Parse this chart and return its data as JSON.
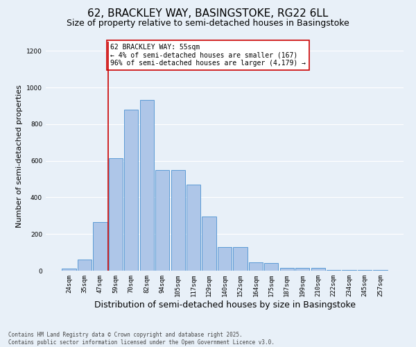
{
  "title": "62, BRACKLEY WAY, BASINGSTOKE, RG22 6LL",
  "subtitle": "Size of property relative to semi-detached houses in Basingstoke",
  "xlabel": "Distribution of semi-detached houses by size in Basingstoke",
  "ylabel": "Number of semi-detached properties",
  "categories": [
    "24sqm",
    "35sqm",
    "47sqm",
    "59sqm",
    "70sqm",
    "82sqm",
    "94sqm",
    "105sqm",
    "117sqm",
    "129sqm",
    "140sqm",
    "152sqm",
    "164sqm",
    "175sqm",
    "187sqm",
    "199sqm",
    "210sqm",
    "222sqm",
    "234sqm",
    "245sqm",
    "257sqm"
  ],
  "values": [
    10,
    60,
    265,
    615,
    880,
    930,
    550,
    550,
    470,
    295,
    130,
    130,
    45,
    40,
    15,
    15,
    15,
    5,
    5,
    2,
    3
  ],
  "bar_color": "#aec6e8",
  "bar_edge_color": "#5b9bd5",
  "vline_color": "#cc0000",
  "vline_pos": 2.5,
  "annotation_text": "62 BRACKLEY WAY: 55sqm\n← 4% of semi-detached houses are smaller (167)\n96% of semi-detached houses are larger (4,179) →",
  "annotation_box_color": "#ffffff",
  "annotation_box_edge_color": "#cc0000",
  "ylim": [
    0,
    1250
  ],
  "yticks": [
    0,
    200,
    400,
    600,
    800,
    1000,
    1200
  ],
  "background_color": "#e8f0f8",
  "grid_color": "#ffffff",
  "footer": "Contains HM Land Registry data © Crown copyright and database right 2025.\nContains public sector information licensed under the Open Government Licence v3.0.",
  "title_fontsize": 11,
  "subtitle_fontsize": 9,
  "xlabel_fontsize": 9,
  "ylabel_fontsize": 8,
  "tick_fontsize": 6.5,
  "annotation_fontsize": 7,
  "footer_fontsize": 5.5
}
